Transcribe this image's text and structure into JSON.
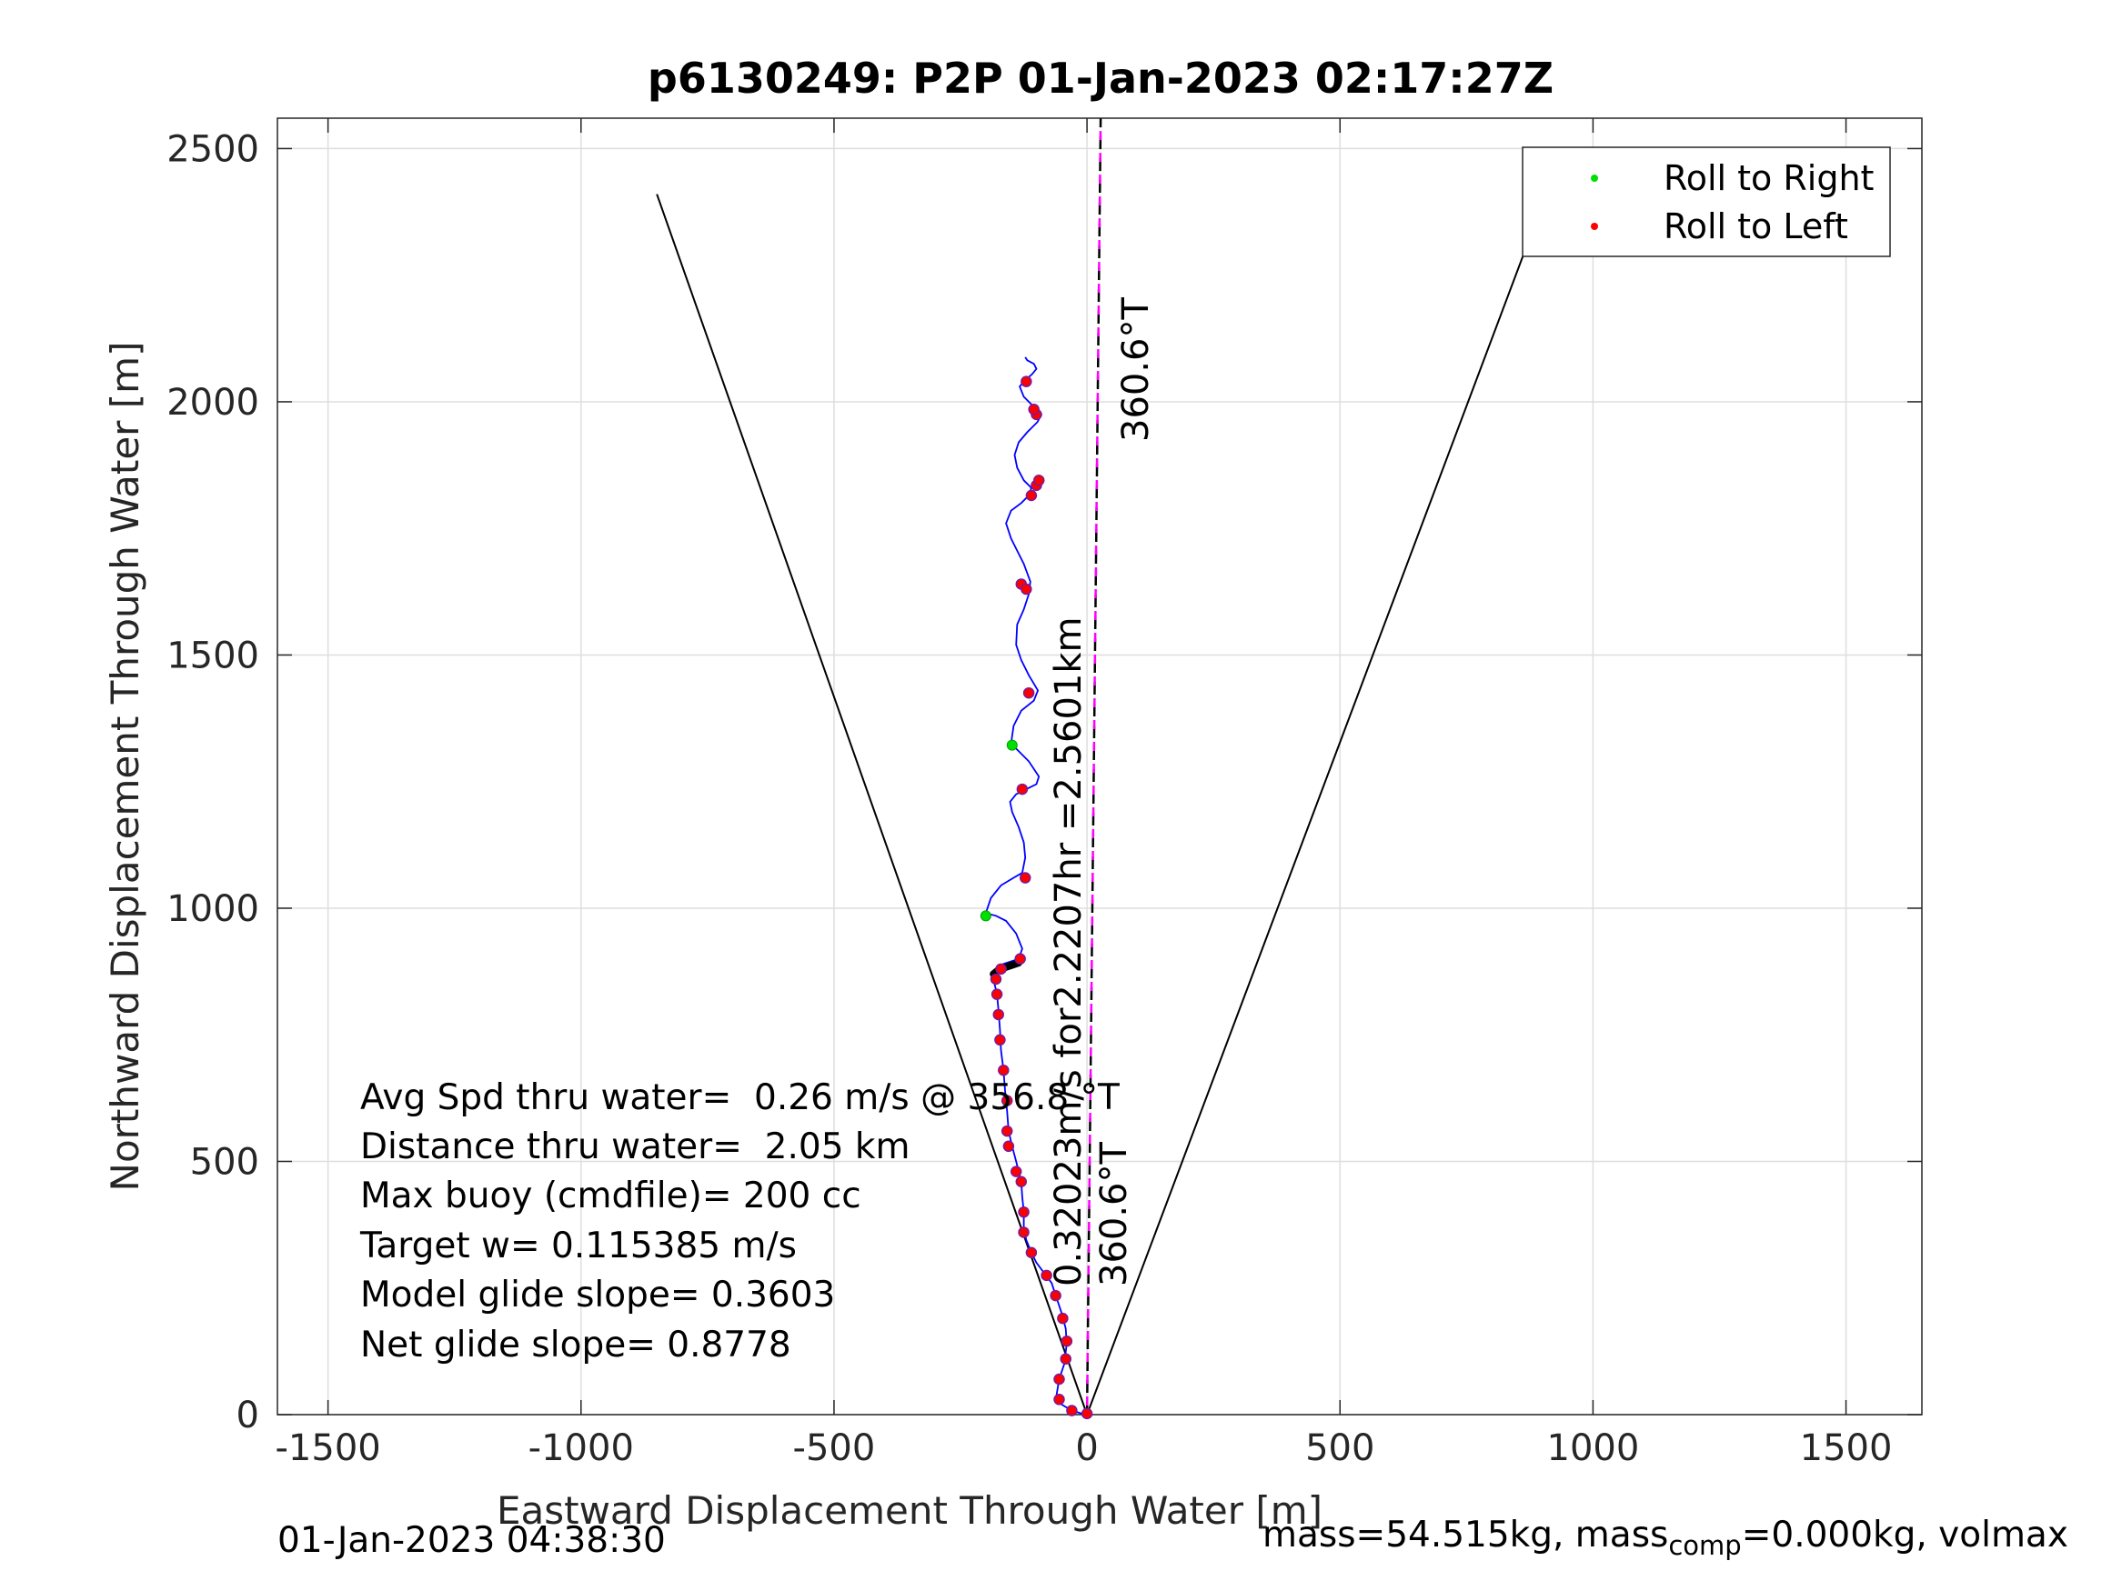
{
  "chart_data": {
    "type": "line",
    "title": "p6130249: P2P 01-Jan-2023 02:17:27Z",
    "xlabel": "Eastward Displacement Through Water [m]",
    "ylabel": "Northward Displacement Through Water [m]",
    "xlim": [
      -1600,
      1650
    ],
    "ylim": [
      0,
      2560
    ],
    "xticks": [
      -1500,
      -1000,
      -500,
      0,
      500,
      1000,
      1500
    ],
    "xtick_labels": [
      "-1500",
      "-1000",
      "-500",
      "0",
      "500",
      "1000",
      "1500"
    ],
    "yticks": [
      0,
      500,
      1000,
      1500,
      2000,
      2500
    ],
    "ytick_labels": [
      "0",
      "500",
      "1000",
      "1500",
      "2000",
      "2500"
    ],
    "grid": true,
    "legend_position": "top-right",
    "legend": [
      {
        "label": "Roll to Right",
        "color": "#00e000"
      },
      {
        "label": "Roll to Left",
        "color": "#ff0000"
      }
    ],
    "track": {
      "color": "#0000ff",
      "x": [
        0,
        -10,
        -30,
        -50,
        -60,
        -55,
        -45,
        -40,
        -42,
        -50,
        -60,
        -70,
        -85,
        -100,
        -110,
        -120,
        -125,
        -125,
        -128,
        -130,
        -135,
        -140,
        -148,
        -155,
        -158,
        -162,
        -165,
        -170,
        -172,
        -175,
        -178,
        -185,
        -180,
        -175,
        -165,
        -150,
        -135,
        -128,
        -140,
        -160,
        -180,
        -200,
        -190,
        -170,
        -145,
        -128,
        -122,
        -125,
        -135,
        -148,
        -152,
        -140,
        -120,
        -100,
        -95,
        -115,
        -135,
        -150,
        -145,
        -130,
        -105,
        -97,
        -115,
        -130,
        -140,
        -138,
        -125,
        -115,
        -112,
        -125,
        -140,
        -150,
        -160,
        -150,
        -130,
        -115,
        -110,
        -125,
        -138,
        -143,
        -135,
        -118,
        -98,
        -90,
        -105,
        -125,
        -133,
        -125,
        -108,
        -100,
        -105,
        -118,
        -122
      ],
      "y": [
        0,
        2,
        8,
        20,
        40,
        70,
        100,
        140,
        170,
        200,
        230,
        260,
        280,
        300,
        320,
        345,
        370,
        400,
        430,
        460,
        480,
        500,
        530,
        560,
        600,
        640,
        680,
        720,
        760,
        800,
        830,
        860,
        878,
        885,
        890,
        895,
        900,
        920,
        950,
        975,
        985,
        990,
        1020,
        1045,
        1060,
        1070,
        1100,
        1130,
        1160,
        1190,
        1210,
        1225,
        1235,
        1245,
        1260,
        1290,
        1310,
        1325,
        1360,
        1390,
        1410,
        1430,
        1460,
        1490,
        1520,
        1560,
        1590,
        1620,
        1645,
        1680,
        1710,
        1730,
        1760,
        1785,
        1800,
        1815,
        1830,
        1845,
        1870,
        1895,
        1920,
        1940,
        1960,
        1975,
        1990,
        2010,
        2030,
        2040,
        2055,
        2065,
        2075,
        2082,
        2088
      ]
    },
    "roll_to_left": [
      [
        0,
        2
      ],
      [
        -30,
        8
      ],
      [
        -55,
        30
      ],
      [
        -55,
        70
      ],
      [
        -42,
        110
      ],
      [
        -40,
        145
      ],
      [
        -48,
        190
      ],
      [
        -62,
        235
      ],
      [
        -80,
        275
      ],
      [
        -110,
        320
      ],
      [
        -125,
        360
      ],
      [
        -125,
        400
      ],
      [
        -130,
        460
      ],
      [
        -140,
        480
      ],
      [
        -155,
        530
      ],
      [
        -158,
        560
      ],
      [
        -158,
        620
      ],
      [
        -165,
        680
      ],
      [
        -172,
        740
      ],
      [
        -175,
        790
      ],
      [
        -178,
        830
      ],
      [
        -180,
        860
      ],
      [
        -170,
        880
      ],
      [
        -132,
        900
      ],
      [
        -122,
        1060
      ],
      [
        -128,
        1235
      ],
      [
        -115,
        1425
      ],
      [
        -130,
        1640
      ],
      [
        -120,
        1630
      ],
      [
        -110,
        1815
      ],
      [
        -100,
        1835
      ],
      [
        -95,
        1845
      ],
      [
        -100,
        1975
      ],
      [
        -105,
        1985
      ],
      [
        -120,
        2040
      ]
    ],
    "roll_to_right": [
      [
        -200,
        985
      ],
      [
        -148,
        1322
      ]
    ],
    "black_segment": {
      "x": [
        -185,
        -175,
        -165,
        -150,
        -135
      ],
      "y": [
        870,
        878,
        882,
        887,
        892
      ]
    },
    "wedge_lines": [
      {
        "x": [
          -850,
          0,
          900
        ],
        "y": [
          2410,
          0,
          2390
        ],
        "color": "#000000"
      }
    ],
    "heading_line": {
      "x": [
        0,
        27
      ],
      "y": [
        0,
        2560
      ],
      "color": "#000000",
      "dash_color": "#ff00ff"
    },
    "annotations": {
      "heading_upper": "360.6°T",
      "heading_lower": "360.6°T",
      "distance": "0.32023m/s for2.2207hr =2.5601km"
    },
    "stats": [
      "Avg Spd thru water=  0.26 m/s @ 356.8 °T",
      "Distance thru water=  2.05 km",
      "Max buoy (cmdfile)= 200 cc",
      "Target w= 0.115385 m/s",
      "Model glide slope= 0.3603",
      "Net glide slope= 0.8778"
    ]
  },
  "footer": {
    "timestamp": "01-Jan-2023 04:38:30",
    "mass_text": "mass=54.515kg, mass",
    "mass_sub": "comp",
    "mass_rest": "=0.000kg, volmax"
  }
}
